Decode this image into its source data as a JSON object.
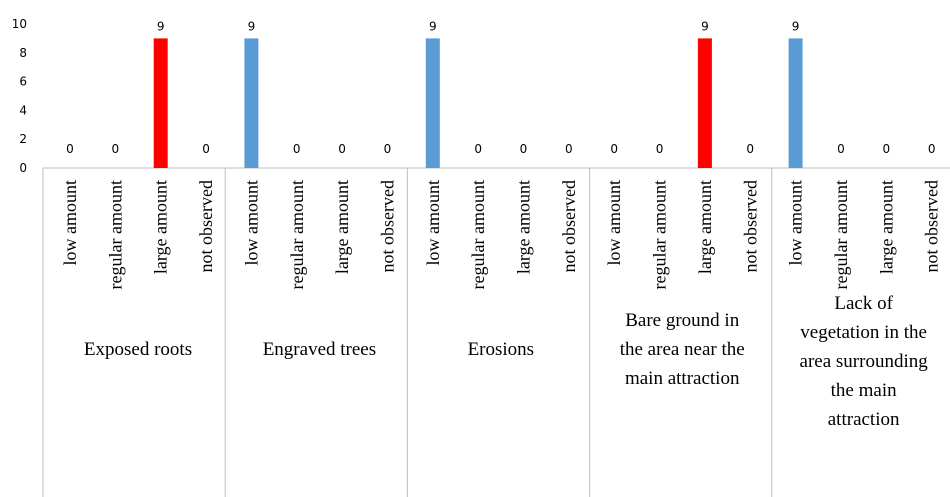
{
  "chart_data": {
    "type": "bar",
    "ylim": [
      0,
      10
    ],
    "yticks": [
      0,
      2,
      4,
      6,
      8,
      10
    ],
    "grid": false,
    "legend": "none",
    "colors": {
      "default": "#5B9BD5",
      "highlight": "#FF0000",
      "axis": "#BFBFBF"
    },
    "groups": [
      {
        "label_lines": [
          "Exposed roots"
        ],
        "categories": [
          "low amount",
          "regular amount",
          "large amount",
          "not observed"
        ],
        "values": [
          0,
          0,
          9,
          0
        ],
        "colors": [
          "#5B9BD5",
          "#5B9BD5",
          "#FF0000",
          "#5B9BD5"
        ]
      },
      {
        "label_lines": [
          "Engraved trees"
        ],
        "categories": [
          "low amount",
          "regular amount",
          "large amount",
          "not observed"
        ],
        "values": [
          9,
          0,
          0,
          0
        ],
        "colors": [
          "#5B9BD5",
          "#5B9BD5",
          "#5B9BD5",
          "#5B9BD5"
        ]
      },
      {
        "label_lines": [
          "Erosions"
        ],
        "categories": [
          "low amount",
          "regular amount",
          "large amount",
          "not observed"
        ],
        "values": [
          9,
          0,
          0,
          0
        ],
        "colors": [
          "#5B9BD5",
          "#5B9BD5",
          "#5B9BD5",
          "#5B9BD5"
        ]
      },
      {
        "label_lines": [
          "Bare ground in",
          "the area near the",
          "main attraction"
        ],
        "categories": [
          "low amount",
          "regular amount",
          "large amount",
          "not observed"
        ],
        "values": [
          0,
          0,
          9,
          0
        ],
        "colors": [
          "#5B9BD5",
          "#5B9BD5",
          "#FF0000",
          "#5B9BD5"
        ]
      },
      {
        "label_lines": [
          "Lack of",
          "vegetation in the",
          "area surrounding",
          "the main",
          "attraction"
        ],
        "categories": [
          "low amount",
          "regular amount",
          "large amount",
          "not observed"
        ],
        "values": [
          9,
          0,
          0,
          0
        ],
        "colors": [
          "#5B9BD5",
          "#5B9BD5",
          "#5B9BD5",
          "#5B9BD5"
        ]
      }
    ]
  }
}
